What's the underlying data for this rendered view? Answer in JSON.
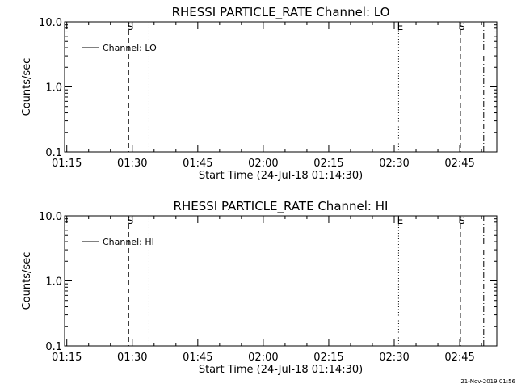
{
  "chart_data": [
    {
      "type": "line",
      "title": "RHESSI PARTICLE_RATE Channel: LO",
      "xlabel": "Start Time (24-Jul-18 01:14:30)",
      "ylabel": "Counts/sec",
      "y_scale": "log",
      "ylim": [
        0.1,
        10.0
      ],
      "y_ticks": [
        "10.0",
        "1.0",
        "0.1"
      ],
      "xlim": [
        "01:14:30",
        "02:53:30"
      ],
      "x_ticks": [
        "01:15",
        "01:30",
        "01:45",
        "02:00",
        "02:15",
        "02:30",
        "02:45"
      ],
      "legend": {
        "label": "Channel: LO",
        "position": "top-left"
      },
      "series": [],
      "markers": [
        {
          "time": "01:29:10",
          "style": "dashed",
          "label": "S"
        },
        {
          "time": "01:33:50",
          "style": "dotted",
          "label": ""
        },
        {
          "time": "02:31:00",
          "style": "dotted",
          "label": "E"
        },
        {
          "time": "02:45:10",
          "style": "dashed",
          "label": "S"
        },
        {
          "time": "02:50:30",
          "style": "dashdot",
          "label": ""
        }
      ]
    },
    {
      "type": "line",
      "title": "RHESSI PARTICLE_RATE Channel: HI",
      "xlabel": "Start Time (24-Jul-18 01:14:30)",
      "ylabel": "Counts/sec",
      "y_scale": "log",
      "ylim": [
        0.1,
        10.0
      ],
      "y_ticks": [
        "10.0",
        "1.0",
        "0.1"
      ],
      "xlim": [
        "01:14:30",
        "02:53:30"
      ],
      "x_ticks": [
        "01:15",
        "01:30",
        "01:45",
        "02:00",
        "02:15",
        "02:30",
        "02:45"
      ],
      "legend": {
        "label": "Channel: HI",
        "position": "top-left"
      },
      "series": [],
      "markers": [
        {
          "time": "01:29:10",
          "style": "dashed",
          "label": "S"
        },
        {
          "time": "01:33:50",
          "style": "dotted",
          "label": ""
        },
        {
          "time": "02:31:00",
          "style": "dotted",
          "label": "E"
        },
        {
          "time": "02:45:10",
          "style": "dashed",
          "label": "S"
        },
        {
          "time": "02:50:30",
          "style": "dashdot",
          "label": ""
        }
      ]
    }
  ],
  "footer": {
    "timestamp": "21-Nov-2019 01:56"
  }
}
